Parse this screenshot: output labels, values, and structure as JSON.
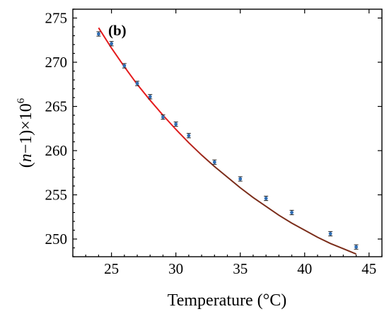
{
  "chart_data": {
    "type": "scatter",
    "panel_label": "(b)",
    "xlabel": "Temperature (°C)",
    "ylabel": {
      "prefix": "(",
      "variable": "n",
      "middle": "−1)×10",
      "exponent": "6"
    },
    "xlim": [
      22,
      46
    ],
    "ylim": [
      248,
      276
    ],
    "xticks": [
      25,
      30,
      35,
      40,
      45
    ],
    "yticks": [
      250,
      255,
      260,
      265,
      270,
      275
    ],
    "grid": false,
    "series": [
      {
        "kind": "measured",
        "color": "#2e6db4",
        "x": [
          24,
          25,
          26,
          27,
          28,
          29,
          30,
          31,
          33,
          35,
          37,
          39,
          42,
          44
        ],
        "y": [
          273.2,
          272.1,
          269.6,
          267.6,
          266.1,
          263.8,
          263.0,
          261.7,
          258.7,
          256.8,
          254.6,
          253.0,
          250.6,
          249.1
        ],
        "error": 0.25
      },
      {
        "kind": "fit",
        "colors": [
          "#e41a1c",
          "#7b2d1a"
        ],
        "x": [
          24.0,
          25.0,
          26.0,
          27.0,
          28.0,
          29.0,
          30.0,
          31.0,
          32.0,
          33.0,
          34.0,
          35.0,
          36.0,
          37.0,
          38.0,
          39.0,
          40.0,
          41.0,
          42.0,
          43.0,
          44.0
        ],
        "y": [
          273.9,
          271.6,
          269.5,
          267.5,
          265.7,
          264.0,
          262.4,
          260.9,
          259.5,
          258.2,
          257.0,
          255.8,
          254.7,
          253.7,
          252.7,
          251.8,
          251.0,
          250.2,
          249.5,
          248.9,
          248.3
        ]
      }
    ]
  }
}
